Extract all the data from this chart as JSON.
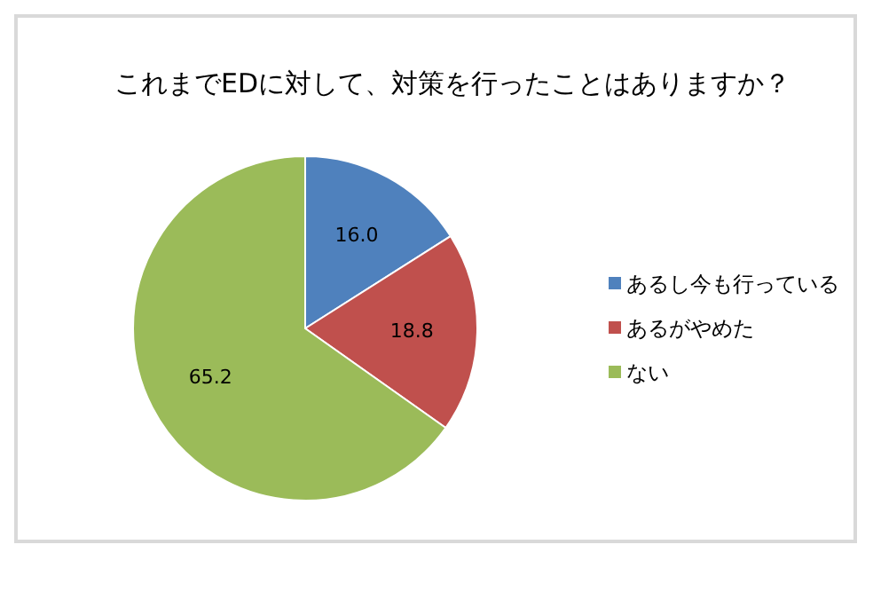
{
  "chart_data": {
    "type": "pie",
    "title": "これまでEDに対して、対策を行ったことはありますか？",
    "categories": [
      "あるし今も行っている",
      "あるがやめた",
      "ない"
    ],
    "values": [
      16.0,
      18.8,
      65.2
    ],
    "value_labels": [
      "16.0",
      "18.8",
      "65.2"
    ],
    "colors": [
      "#4f81bd",
      "#c0504d",
      "#9bbb59"
    ],
    "legend": "right"
  }
}
